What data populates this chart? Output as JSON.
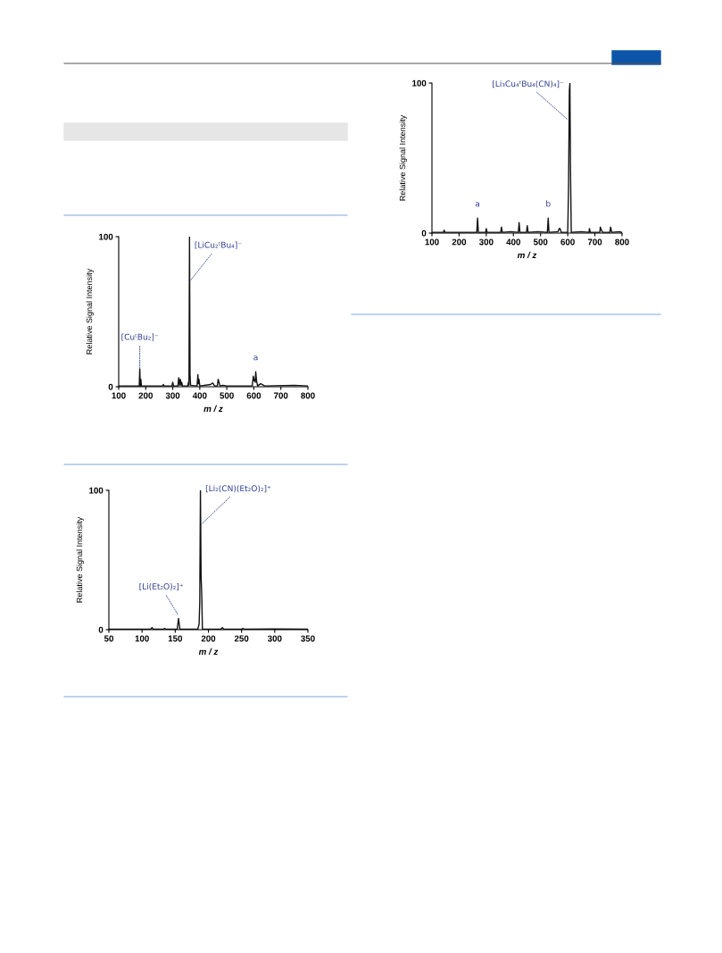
{
  "chart_data": [
    {
      "type": "line",
      "xlabel": "m / z",
      "ylabel": "Relative Signal Intensity",
      "color": "#111111",
      "x": [
        100,
        150,
        176,
        178,
        180,
        182,
        184,
        262,
        265,
        268,
        297,
        300,
        303,
        319,
        322,
        325,
        328,
        331,
        333,
        336,
        356,
        358,
        360,
        362,
        364,
        366,
        390,
        393,
        395,
        397,
        400,
        440,
        448,
        455,
        465,
        468,
        471,
        475,
        485,
        500,
        594,
        598,
        601,
        603,
        605,
        607,
        610,
        614,
        625,
        630,
        640,
        750,
        800
      ],
      "values": [
        0.5,
        0.5,
        0.5,
        12,
        0.5,
        5,
        0.5,
        0.5,
        1.5,
        0.5,
        0.5,
        3,
        0.5,
        0.5,
        6,
        1,
        5,
        1,
        3,
        0.5,
        0.5,
        3,
        1,
        100,
        8,
        1,
        0.5,
        8,
        2,
        5,
        0.5,
        1.5,
        2.5,
        0.5,
        0.5,
        5,
        3,
        0.5,
        1,
        0.5,
        0.5,
        7,
        4,
        5,
        3,
        10,
        4,
        0.5,
        2,
        1.5,
        0.5,
        1,
        0.5
      ],
      "xlim": [
        100,
        800
      ],
      "ylim": [
        0,
        100
      ],
      "xticks": [
        100,
        200,
        300,
        400,
        500,
        600,
        700,
        800
      ],
      "yticks": [
        0,
        100
      ],
      "grid": false,
      "annotations": [
        {
          "text": "[CuᵗBu₂]⁻",
          "x": 178,
          "y": 12
        },
        {
          "text": "[LiCu₂ᵗBu₄]⁻",
          "x": 362,
          "y": 70
        },
        {
          "text": "a",
          "x": 607,
          "y": 10
        }
      ]
    },
    {
      "type": "line",
      "xlabel": "m / z",
      "ylabel": "Relative Signal Intensity",
      "color": "#111111",
      "x": [
        50,
        113,
        115,
        117,
        132,
        134,
        136,
        153,
        155,
        157,
        184,
        186,
        187,
        188,
        189,
        190,
        191,
        219,
        221,
        223,
        250,
        252,
        254,
        300,
        350
      ],
      "values": [
        0.3,
        0.3,
        1.5,
        0.3,
        0.3,
        1,
        0.3,
        0.3,
        8,
        0.3,
        0.3,
        4,
        20,
        100,
        38,
        25,
        0.3,
        0.3,
        1.5,
        0.3,
        0.3,
        1,
        0.3,
        0.5,
        0.3
      ],
      "xlim": [
        50,
        350
      ],
      "ylim": [
        0,
        100
      ],
      "xticks": [
        50,
        100,
        150,
        200,
        250,
        300,
        350
      ],
      "yticks": [
        0,
        100
      ],
      "grid": false,
      "annotations": [
        {
          "text": "[Li(Et₂O)₂]⁺",
          "x": 155,
          "y": 10
        },
        {
          "text": "[Li₂(CN)(Et₂O)₂]⁺",
          "x": 188,
          "y": 75
        }
      ]
    },
    {
      "type": "line",
      "xlabel": "m / z",
      "ylabel": "Relative Signal Intensity",
      "color": "#111111",
      "x": [
        100,
        142,
        145,
        148,
        265,
        268,
        271,
        298,
        300,
        303,
        353,
        356,
        359,
        390,
        418,
        421,
        424,
        448,
        451,
        454,
        490,
        525,
        528,
        531,
        565,
        568,
        572,
        576,
        600,
        603,
        606,
        608,
        610,
        613,
        650,
        678,
        680,
        683,
        718,
        720,
        724,
        728,
        755,
        758,
        762,
        790,
        800
      ],
      "values": [
        0.5,
        0.5,
        2,
        0.5,
        0.5,
        10,
        0.5,
        0.5,
        3,
        0.5,
        0.5,
        4,
        0.5,
        1,
        0.5,
        7,
        0.5,
        0.5,
        5,
        0.5,
        1,
        0.5,
        10,
        0.5,
        1,
        3,
        3,
        0.5,
        0.5,
        30,
        95,
        100,
        45,
        0.5,
        1,
        0.5,
        3,
        0.5,
        0.5,
        4,
        2,
        0.5,
        0.5,
        4,
        0.5,
        1,
        0.5
      ],
      "xlim": [
        100,
        800
      ],
      "ylim": [
        0,
        100
      ],
      "xticks": [
        100,
        200,
        300,
        400,
        500,
        600,
        700,
        800
      ],
      "yticks": [
        0,
        100
      ],
      "grid": false,
      "annotations": [
        {
          "text": "a",
          "x": 268,
          "y": 10
        },
        {
          "text": "b",
          "x": 528,
          "y": 10
        },
        {
          "text": "[Li₃Cu₄ᵗBu₄(CN)₄]⁻",
          "x": 604,
          "y": 75
        }
      ]
    }
  ]
}
